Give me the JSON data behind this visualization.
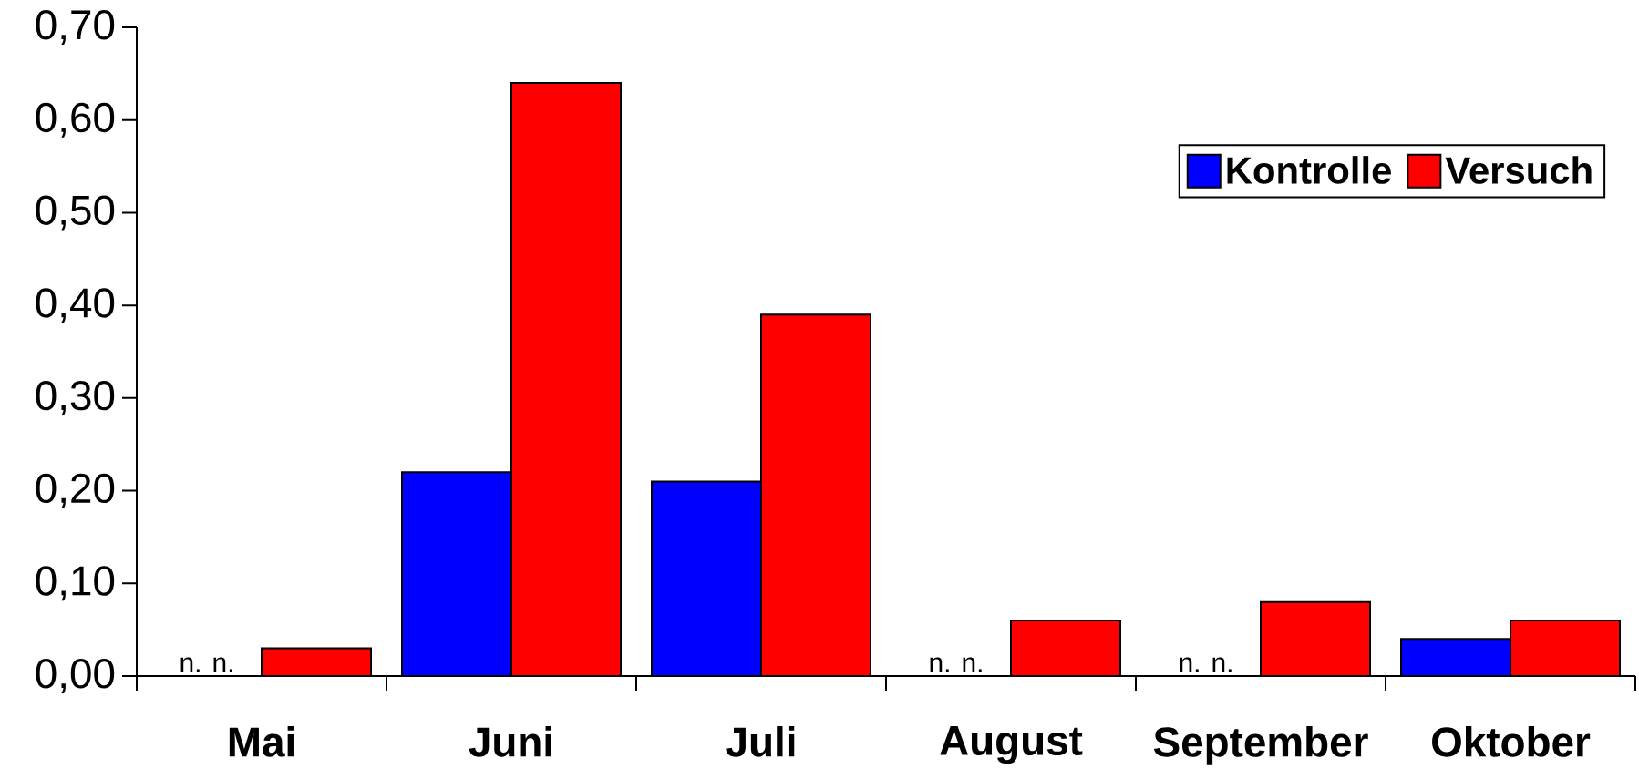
{
  "chart_data": {
    "type": "bar",
    "categories": [
      "Mai",
      "Juni",
      "Juli",
      "August",
      "September",
      "Oktober"
    ],
    "series": [
      {
        "name": "Kontrolle",
        "color": "#0000ff",
        "values": [
          null,
          0.22,
          0.21,
          null,
          null,
          0.04
        ]
      },
      {
        "name": "Versuch",
        "color": "#ff0000",
        "values": [
          0.03,
          0.64,
          0.39,
          0.06,
          0.08,
          0.06
        ]
      }
    ],
    "ylim": [
      0,
      0.7
    ],
    "yticks": [
      {
        "value": 0,
        "label": "0,00"
      },
      {
        "value": 0.1,
        "label": "0,10"
      },
      {
        "value": 0.2,
        "label": "0,20"
      },
      {
        "value": 0.3,
        "label": "0,30"
      },
      {
        "value": 0.4,
        "label": "0,40"
      },
      {
        "value": 0.5,
        "label": "0,50"
      },
      {
        "value": 0.6,
        "label": "0,60"
      },
      {
        "value": 0.7,
        "label": "0,70"
      }
    ],
    "legend": "top right",
    "annotations": [
      {
        "text": "n. n.",
        "x": "Mai",
        "y": 0
      },
      {
        "text": "n. n.",
        "x": "August",
        "y": 0
      },
      {
        "text": "n. n.",
        "x": "September",
        "y": 0
      }
    ]
  }
}
